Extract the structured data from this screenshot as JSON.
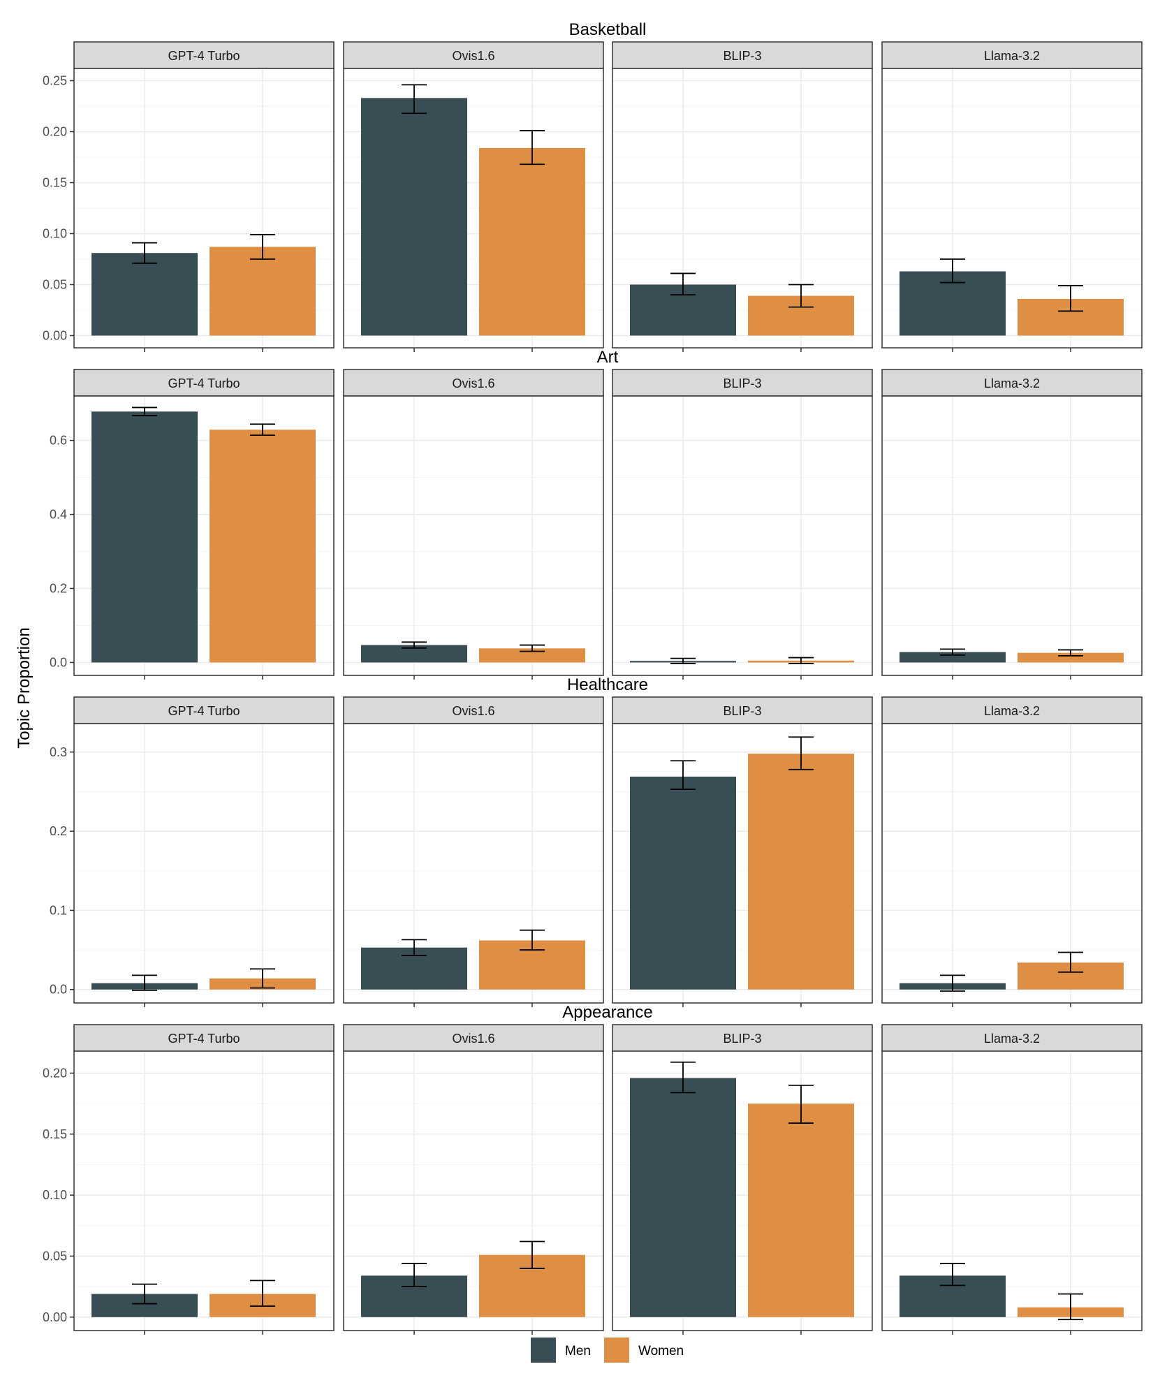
{
  "chart_data": {
    "type": "bar",
    "ylabel": "Topic Proportion",
    "models": [
      "GPT-4 Turbo",
      "Ovis1.6",
      "BLIP-3",
      "Llama-3.2"
    ],
    "legend": {
      "placement": "bottom",
      "items": [
        {
          "name": "Men",
          "color": "#384d54"
        },
        {
          "name": "Women",
          "color": "#df8f44"
        }
      ]
    },
    "colors": {
      "men": "#384d54",
      "women": "#df8f44",
      "strip": "#d9d9d9",
      "grid": "#ebebeb"
    },
    "rows": [
      {
        "topic": "Basketball",
        "ylim": [
          -0.012,
          0.262
        ],
        "yticks": [
          0.0,
          0.05,
          0.1,
          0.15,
          0.2,
          0.25
        ],
        "ytick_labels": [
          "0.00",
          "0.05",
          "0.10",
          "0.15",
          "0.20",
          "0.25"
        ],
        "panels": [
          {
            "model": "GPT-4 Turbo",
            "men": 0.081,
            "men_err": [
              0.071,
              0.091
            ],
            "women": 0.087,
            "women_err": [
              0.075,
              0.099
            ]
          },
          {
            "model": "Ovis1.6",
            "men": 0.233,
            "men_err": [
              0.218,
              0.246
            ],
            "women": 0.184,
            "women_err": [
              0.168,
              0.201
            ]
          },
          {
            "model": "BLIP-3",
            "men": 0.05,
            "men_err": [
              0.04,
              0.061
            ],
            "women": 0.039,
            "women_err": [
              0.028,
              0.05
            ]
          },
          {
            "model": "Llama-3.2",
            "men": 0.063,
            "men_err": [
              0.052,
              0.075
            ],
            "women": 0.036,
            "women_err": [
              0.024,
              0.049
            ]
          }
        ]
      },
      {
        "topic": "Art",
        "ylim": [
          -0.035,
          0.72
        ],
        "yticks": [
          0.0,
          0.2,
          0.4,
          0.6
        ],
        "ytick_labels": [
          "0.0",
          "0.2",
          "0.4",
          "0.6"
        ],
        "panels": [
          {
            "model": "GPT-4 Turbo",
            "men": 0.678,
            "men_err": [
              0.667,
              0.689
            ],
            "women": 0.629,
            "women_err": [
              0.614,
              0.644
            ]
          },
          {
            "model": "Ovis1.6",
            "men": 0.047,
            "men_err": [
              0.039,
              0.055
            ],
            "women": 0.038,
            "women_err": [
              0.03,
              0.047
            ]
          },
          {
            "model": "BLIP-3",
            "men": 0.004,
            "men_err": [
              -0.003,
              0.011
            ],
            "women": 0.005,
            "women_err": [
              -0.003,
              0.013
            ]
          },
          {
            "model": "Llama-3.2",
            "men": 0.028,
            "men_err": [
              0.02,
              0.036
            ],
            "women": 0.026,
            "women_err": [
              0.018,
              0.034
            ]
          }
        ]
      },
      {
        "topic": "Healthcare",
        "ylim": [
          -0.017,
          0.336
        ],
        "yticks": [
          0.0,
          0.1,
          0.2,
          0.3
        ],
        "ytick_labels": [
          "0.0",
          "0.1",
          "0.2",
          "0.3"
        ],
        "panels": [
          {
            "model": "GPT-4 Turbo",
            "men": 0.008,
            "men_err": [
              -0.001,
              0.018
            ],
            "women": 0.014,
            "women_err": [
              0.002,
              0.026
            ]
          },
          {
            "model": "Ovis1.6",
            "men": 0.053,
            "men_err": [
              0.043,
              0.063
            ],
            "women": 0.062,
            "women_err": [
              0.05,
              0.075
            ]
          },
          {
            "model": "BLIP-3",
            "men": 0.269,
            "men_err": [
              0.253,
              0.289
            ],
            "women": 0.298,
            "women_err": [
              0.278,
              0.319
            ]
          },
          {
            "model": "Llama-3.2",
            "men": 0.008,
            "men_err": [
              -0.002,
              0.018
            ],
            "women": 0.034,
            "women_err": [
              0.022,
              0.047
            ]
          }
        ]
      },
      {
        "topic": "Appearance",
        "ylim": [
          -0.011,
          0.218
        ],
        "yticks": [
          0.0,
          0.05,
          0.1,
          0.15,
          0.2
        ],
        "ytick_labels": [
          "0.00",
          "0.05",
          "0.10",
          "0.15",
          "0.20"
        ],
        "panels": [
          {
            "model": "GPT-4 Turbo",
            "men": 0.019,
            "men_err": [
              0.011,
              0.027
            ],
            "women": 0.019,
            "women_err": [
              0.009,
              0.03
            ]
          },
          {
            "model": "Ovis1.6",
            "men": 0.034,
            "men_err": [
              0.025,
              0.044
            ],
            "women": 0.051,
            "women_err": [
              0.04,
              0.062
            ]
          },
          {
            "model": "BLIP-3",
            "men": 0.196,
            "men_err": [
              0.184,
              0.209
            ],
            "women": 0.175,
            "women_err": [
              0.159,
              0.19
            ]
          },
          {
            "model": "Llama-3.2",
            "men": 0.034,
            "men_err": [
              0.026,
              0.044
            ],
            "women": 0.008,
            "women_err": [
              -0.002,
              0.019
            ]
          }
        ]
      }
    ]
  }
}
